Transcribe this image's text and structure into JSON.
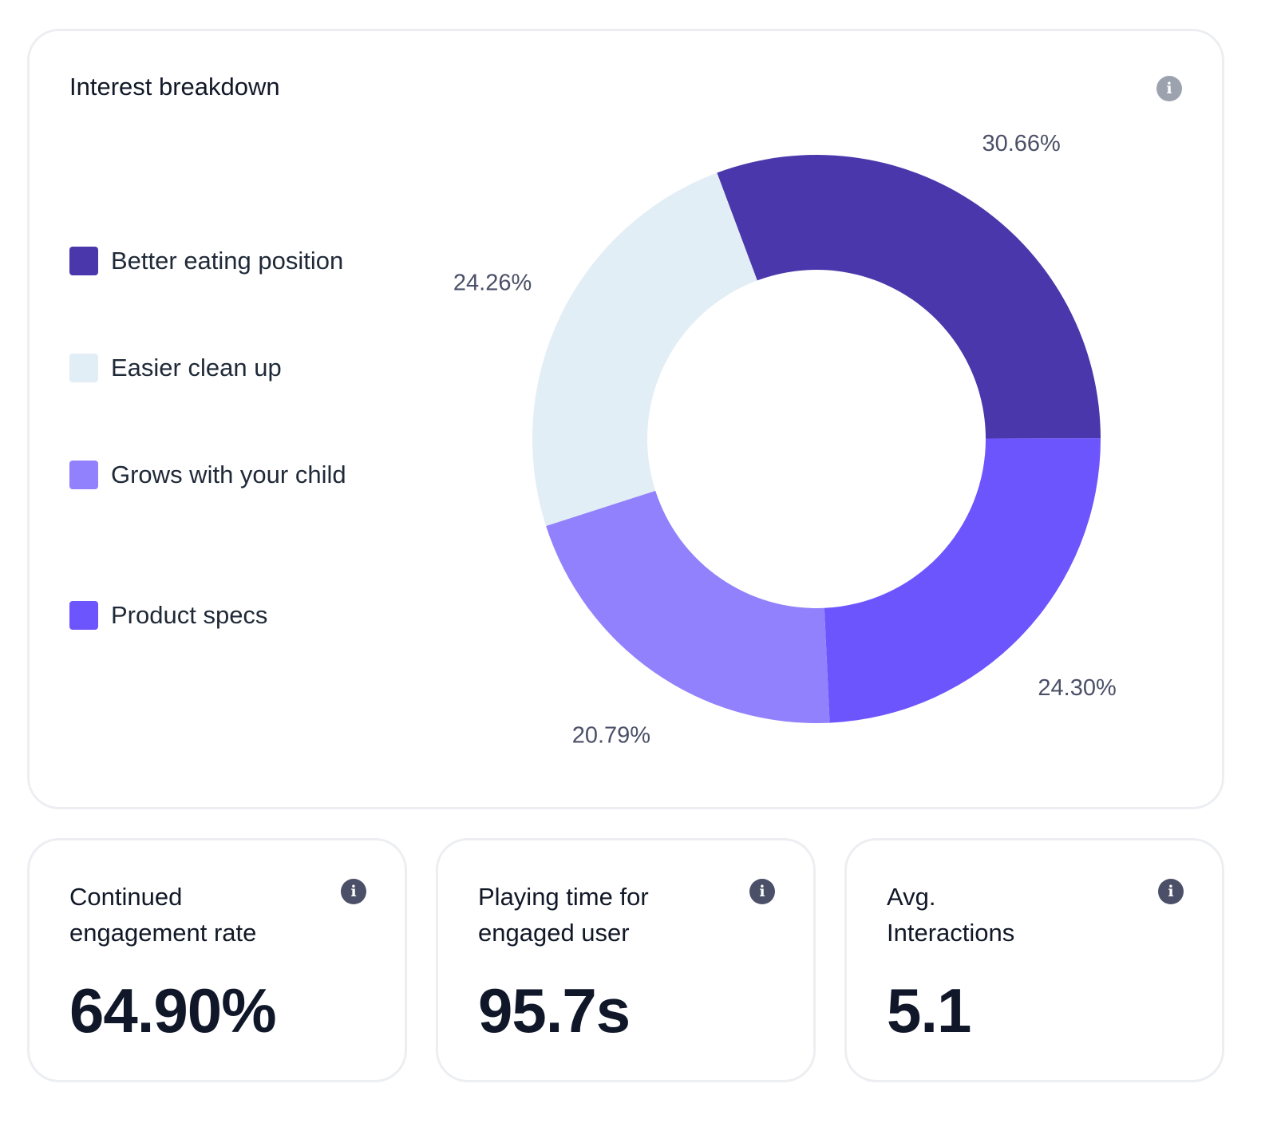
{
  "interest_card": {
    "title": "Interest breakdown",
    "info_icon": "info-icon"
  },
  "chart_data": {
    "type": "pie",
    "variant": "donut",
    "title": "Interest breakdown",
    "categories": [
      "Better eating position",
      "Easier clean up",
      "Grows with your child",
      "Product specs"
    ],
    "values": [
      30.66,
      24.26,
      20.79,
      24.3
    ],
    "value_labels": [
      "30.66%",
      "24.26%",
      "20.79%",
      "24.30%"
    ],
    "unit": "%",
    "colors": [
      "#4a37ab",
      "#e2eef5",
      "#9181fc",
      "#6d55fe"
    ],
    "legend_position": "left"
  },
  "metrics": [
    {
      "title": "Continued engagement rate",
      "value": "64.90%",
      "info_icon": "info-icon"
    },
    {
      "title": "Playing time for engaged user",
      "value": "95.7s",
      "info_icon": "info-icon"
    },
    {
      "title": "Avg. Interactions",
      "value": "5.1",
      "info_icon": "info-icon"
    }
  ],
  "colors": {
    "card_border": "#eceef1",
    "text_primary": "#111827",
    "label_text": "#4b5068"
  }
}
